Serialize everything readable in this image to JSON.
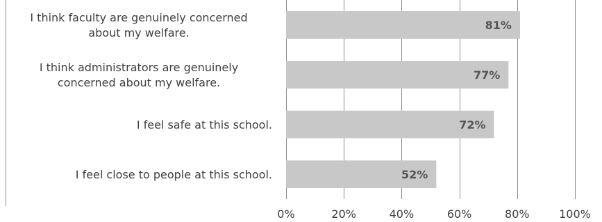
{
  "colors": {
    "bar": "#c8c8c8",
    "grid": "#8c8c8c",
    "text": "#404040",
    "data_label": "#555555"
  },
  "chart_data": {
    "type": "bar",
    "orientation": "horizontal",
    "categories": [
      [
        "I think faculty are genuinely concerned",
        "about my welfare."
      ],
      [
        "I think administrators are genuinely",
        "concerned about my welfare."
      ],
      [
        "I feel safe at this school."
      ],
      [
        "I feel close to people at this school."
      ]
    ],
    "values": [
      81,
      77,
      72,
      52
    ],
    "data_labels": [
      "81%",
      "77%",
      "72%",
      "52%"
    ],
    "xlim": [
      0,
      100
    ],
    "x_ticks": [
      "0%",
      "20%",
      "40%",
      "60%",
      "80%",
      "100%"
    ],
    "grid": true,
    "legend": "none",
    "title": "",
    "xlabel": "",
    "ylabel": ""
  }
}
